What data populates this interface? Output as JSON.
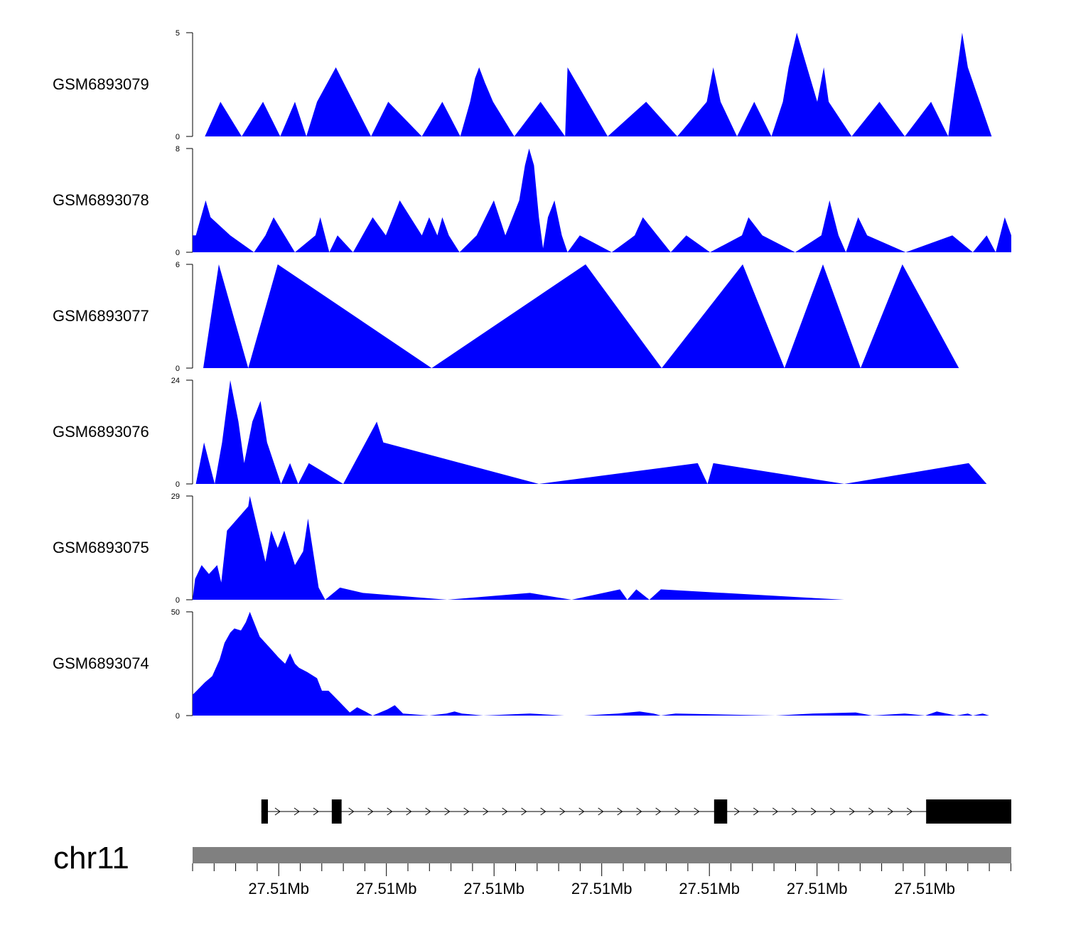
{
  "chart_data": {
    "type": "area",
    "fill_color": "#0000ff",
    "chromosome": "chr11",
    "x_range": [
      0,
      100
    ],
    "x_tick_labels": [
      "27.51Mb",
      "27.51Mb",
      "27.51Mb",
      "27.51Mb",
      "27.51Mb",
      "27.51Mb",
      "27.51Mb"
    ],
    "tracks": [
      {
        "name": "GSM6893079",
        "ymax": 5,
        "ytick_labels": [
          "5",
          "0"
        ],
        "points": [
          [
            1.5,
            0
          ],
          [
            3.4,
            1.67
          ],
          [
            6.0,
            0
          ],
          [
            8.6,
            1.67
          ],
          [
            10.7,
            0
          ],
          [
            12.5,
            1.67
          ],
          [
            13.9,
            0
          ],
          [
            15.2,
            1.67
          ],
          [
            17.5,
            3.33
          ],
          [
            21.8,
            0
          ],
          [
            23.9,
            1.67
          ],
          [
            28.0,
            0
          ],
          [
            30.5,
            1.67
          ],
          [
            32.7,
            0
          ],
          [
            33.9,
            1.67
          ],
          [
            34.5,
            2.8
          ],
          [
            35.0,
            3.33
          ],
          [
            35.7,
            2.6
          ],
          [
            36.7,
            1.67
          ],
          [
            39.3,
            0
          ],
          [
            42.5,
            1.67
          ],
          [
            45.5,
            0
          ],
          [
            45.8,
            3.33
          ],
          [
            50.7,
            0
          ],
          [
            55.4,
            1.67
          ],
          [
            59.2,
            0
          ],
          [
            62.8,
            1.67
          ],
          [
            63.6,
            3.33
          ],
          [
            64.5,
            1.67
          ],
          [
            66.5,
            0
          ],
          [
            68.6,
            1.67
          ],
          [
            70.7,
            0
          ],
          [
            72.1,
            1.67
          ],
          [
            72.8,
            3.33
          ],
          [
            73.8,
            5
          ],
          [
            76.3,
            1.67
          ],
          [
            77.1,
            3.33
          ],
          [
            77.7,
            1.67
          ],
          [
            80.5,
            0
          ],
          [
            83.9,
            1.67
          ],
          [
            87.0,
            0
          ],
          [
            90.2,
            1.67
          ],
          [
            92.3,
            0
          ],
          [
            94.0,
            5
          ],
          [
            94.7,
            3.33
          ],
          [
            97.6,
            0
          ]
        ]
      },
      {
        "name": "GSM6893078",
        "ymax": 8,
        "ytick_labels": [
          "8",
          "0"
        ],
        "points": [
          [
            0,
            1.3
          ],
          [
            0.4,
            1.3
          ],
          [
            1.6,
            4
          ],
          [
            2.2,
            2.7
          ],
          [
            4.6,
            1.3
          ],
          [
            7.5,
            0
          ],
          [
            8.9,
            1.3
          ],
          [
            9.9,
            2.7
          ],
          [
            12.5,
            0
          ],
          [
            15.0,
            1.3
          ],
          [
            15.6,
            2.7
          ],
          [
            16.7,
            0
          ],
          [
            17.7,
            1.3
          ],
          [
            19.6,
            0
          ],
          [
            22.0,
            2.7
          ],
          [
            23.6,
            1.3
          ],
          [
            25.3,
            4
          ],
          [
            28.0,
            1.3
          ],
          [
            28.9,
            2.7
          ],
          [
            29.9,
            1.3
          ],
          [
            30.5,
            2.7
          ],
          [
            31.3,
            1.3
          ],
          [
            32.6,
            0
          ],
          [
            34.7,
            1.3
          ],
          [
            36.8,
            4
          ],
          [
            38.2,
            1.3
          ],
          [
            39.9,
            4
          ],
          [
            40.6,
            6.7
          ],
          [
            41.1,
            8
          ],
          [
            41.7,
            6.7
          ],
          [
            42.3,
            2.7
          ],
          [
            42.8,
            0.3
          ],
          [
            43.4,
            2.7
          ],
          [
            44.2,
            4
          ],
          [
            45.1,
            1.3
          ],
          [
            45.8,
            0
          ],
          [
            47.3,
            1.3
          ],
          [
            51.2,
            0
          ],
          [
            54.0,
            1.3
          ],
          [
            55.0,
            2.7
          ],
          [
            58.4,
            0
          ],
          [
            60.3,
            1.3
          ],
          [
            63.2,
            0
          ],
          [
            67.1,
            1.3
          ],
          [
            67.9,
            2.7
          ],
          [
            69.6,
            1.3
          ],
          [
            73.6,
            0
          ],
          [
            76.8,
            1.3
          ],
          [
            77.8,
            4
          ],
          [
            78.9,
            1.3
          ],
          [
            79.8,
            0
          ],
          [
            81.3,
            2.7
          ],
          [
            82.4,
            1.3
          ],
          [
            87.1,
            0
          ],
          [
            92.8,
            1.3
          ],
          [
            95.3,
            0
          ],
          [
            97.0,
            1.3
          ],
          [
            98.1,
            0
          ],
          [
            99.2,
            2.7
          ],
          [
            100,
            1.3
          ],
          [
            100,
            0
          ]
        ]
      },
      {
        "name": "GSM6893077",
        "ymax": 6,
        "ytick_labels": [
          "6",
          "0"
        ],
        "points": [
          [
            1.3,
            0
          ],
          [
            3.2,
            6
          ],
          [
            6.8,
            0
          ],
          [
            10.4,
            6
          ],
          [
            29.2,
            0
          ],
          [
            48.0,
            6
          ],
          [
            57.3,
            0
          ],
          [
            67.2,
            6
          ],
          [
            72.3,
            0
          ],
          [
            77.0,
            6
          ],
          [
            81.6,
            0
          ],
          [
            86.7,
            6
          ],
          [
            93.6,
            0
          ]
        ]
      },
      {
        "name": "GSM6893076",
        "ymax": 24,
        "ytick_labels": [
          "24",
          "0"
        ],
        "points": [
          [
            0,
            0
          ],
          [
            0.4,
            0
          ],
          [
            1.4,
            9.6
          ],
          [
            2.7,
            0
          ],
          [
            3.6,
            9.6
          ],
          [
            4.6,
            24
          ],
          [
            5.6,
            14.4
          ],
          [
            6.3,
            4.8
          ],
          [
            7.3,
            14.4
          ],
          [
            8.3,
            19.2
          ],
          [
            9.1,
            9.6
          ],
          [
            10.8,
            0
          ],
          [
            11.9,
            4.8
          ],
          [
            12.9,
            0
          ],
          [
            14.2,
            4.8
          ],
          [
            18.4,
            0
          ],
          [
            22.5,
            14.4
          ],
          [
            23.3,
            9.6
          ],
          [
            42.3,
            0
          ],
          [
            61.7,
            4.8
          ],
          [
            62.9,
            0
          ],
          [
            63.6,
            4.8
          ],
          [
            79.6,
            0
          ],
          [
            94.8,
            4.8
          ],
          [
            97.0,
            0
          ]
        ]
      },
      {
        "name": "GSM6893075",
        "ymax": 29,
        "ytick_labels": [
          "29",
          "0"
        ],
        "points": [
          [
            0,
            0
          ],
          [
            0.3,
            5.8
          ],
          [
            1.1,
            9.7
          ],
          [
            2.0,
            7.2
          ],
          [
            3.0,
            9.7
          ],
          [
            3.5,
            4.8
          ],
          [
            4.2,
            19.3
          ],
          [
            6.8,
            26.1
          ],
          [
            6.8,
            26.1
          ],
          [
            6.8,
            26.1
          ],
          [
            6.8,
            26.1
          ],
          [
            6.8,
            26.1
          ],
          [
            6.8,
            26.1
          ],
          [
            6.8,
            26.1
          ],
          [
            6.8,
            26.1
          ],
          [
            6.8,
            26.1
          ],
          [
            6.8,
            26.1
          ],
          [
            6.8,
            26.1
          ],
          [
            6.8,
            26.1
          ],
          [
            6.8,
            26.1
          ],
          [
            6.8,
            26.1
          ],
          [
            7.0,
            29
          ],
          [
            8.9,
            10.6
          ],
          [
            9.6,
            19.3
          ],
          [
            10.4,
            14.5
          ],
          [
            11.2,
            19.3
          ],
          [
            12.5,
            9.7
          ],
          [
            13.5,
            13.5
          ],
          [
            14.1,
            22.7
          ],
          [
            15.4,
            3.4
          ],
          [
            16.2,
            0
          ],
          [
            18.0,
            3.4
          ],
          [
            20.8,
            1.9
          ],
          [
            31.1,
            0
          ],
          [
            41.2,
            1.9
          ],
          [
            46.3,
            0
          ],
          [
            52.2,
            2.9
          ],
          [
            53.1,
            0
          ],
          [
            54.2,
            2.9
          ],
          [
            55.8,
            0
          ],
          [
            57.2,
            2.9
          ],
          [
            79.6,
            0
          ]
        ]
      },
      {
        "name": "GSM6893074",
        "ymax": 50,
        "ytick_labels": [
          "50",
          "0"
        ],
        "points": [
          [
            0,
            10
          ],
          [
            0.5,
            12
          ],
          [
            1.5,
            16
          ],
          [
            2.4,
            19
          ],
          [
            3.3,
            27
          ],
          [
            3.9,
            35
          ],
          [
            4.6,
            40
          ],
          [
            5.1,
            42
          ],
          [
            5.9,
            41
          ],
          [
            6.5,
            45
          ],
          [
            7.0,
            50
          ],
          [
            8.2,
            38
          ],
          [
            9.6,
            32
          ],
          [
            10.5,
            28
          ],
          [
            11.3,
            25
          ],
          [
            11.9,
            30
          ],
          [
            12.5,
            25
          ],
          [
            13.0,
            23
          ],
          [
            14.0,
            21
          ],
          [
            15.2,
            18
          ],
          [
            15.8,
            12
          ],
          [
            16.6,
            12
          ],
          [
            17.1,
            10
          ],
          [
            18.1,
            6
          ],
          [
            19.2,
            1.5
          ],
          [
            20.1,
            4
          ],
          [
            21.1,
            2
          ],
          [
            22.0,
            0
          ],
          [
            23.8,
            3
          ],
          [
            24.7,
            5
          ],
          [
            25.7,
            1
          ],
          [
            28.9,
            0
          ],
          [
            31.0,
            1
          ],
          [
            32.0,
            2
          ],
          [
            32.9,
            1
          ],
          [
            35.5,
            0
          ],
          [
            41.2,
            1
          ],
          [
            45.4,
            0
          ],
          [
            47.1,
            0
          ],
          [
            47.2,
            0
          ],
          [
            47.8,
            0
          ],
          [
            52.0,
            1
          ],
          [
            54.6,
            2
          ],
          [
            56.3,
            1
          ],
          [
            57.2,
            0
          ],
          [
            59.0,
            1
          ],
          [
            71.2,
            0
          ],
          [
            75.8,
            1
          ],
          [
            81.0,
            1.5
          ],
          [
            83.0,
            0
          ],
          [
            87.0,
            1
          ],
          [
            89.5,
            0
          ],
          [
            90.9,
            2
          ],
          [
            93.3,
            0
          ],
          [
            94.7,
            1
          ],
          [
            95.3,
            0
          ],
          [
            96.5,
            1
          ],
          [
            97.3,
            0
          ]
        ]
      }
    ],
    "gene_model": {
      "strand": "+",
      "exons": [
        [
          8.4,
          9.2
        ],
        [
          17.0,
          18.2
        ],
        [
          63.7,
          65.3
        ],
        [
          89.6,
          100
        ]
      ]
    }
  }
}
